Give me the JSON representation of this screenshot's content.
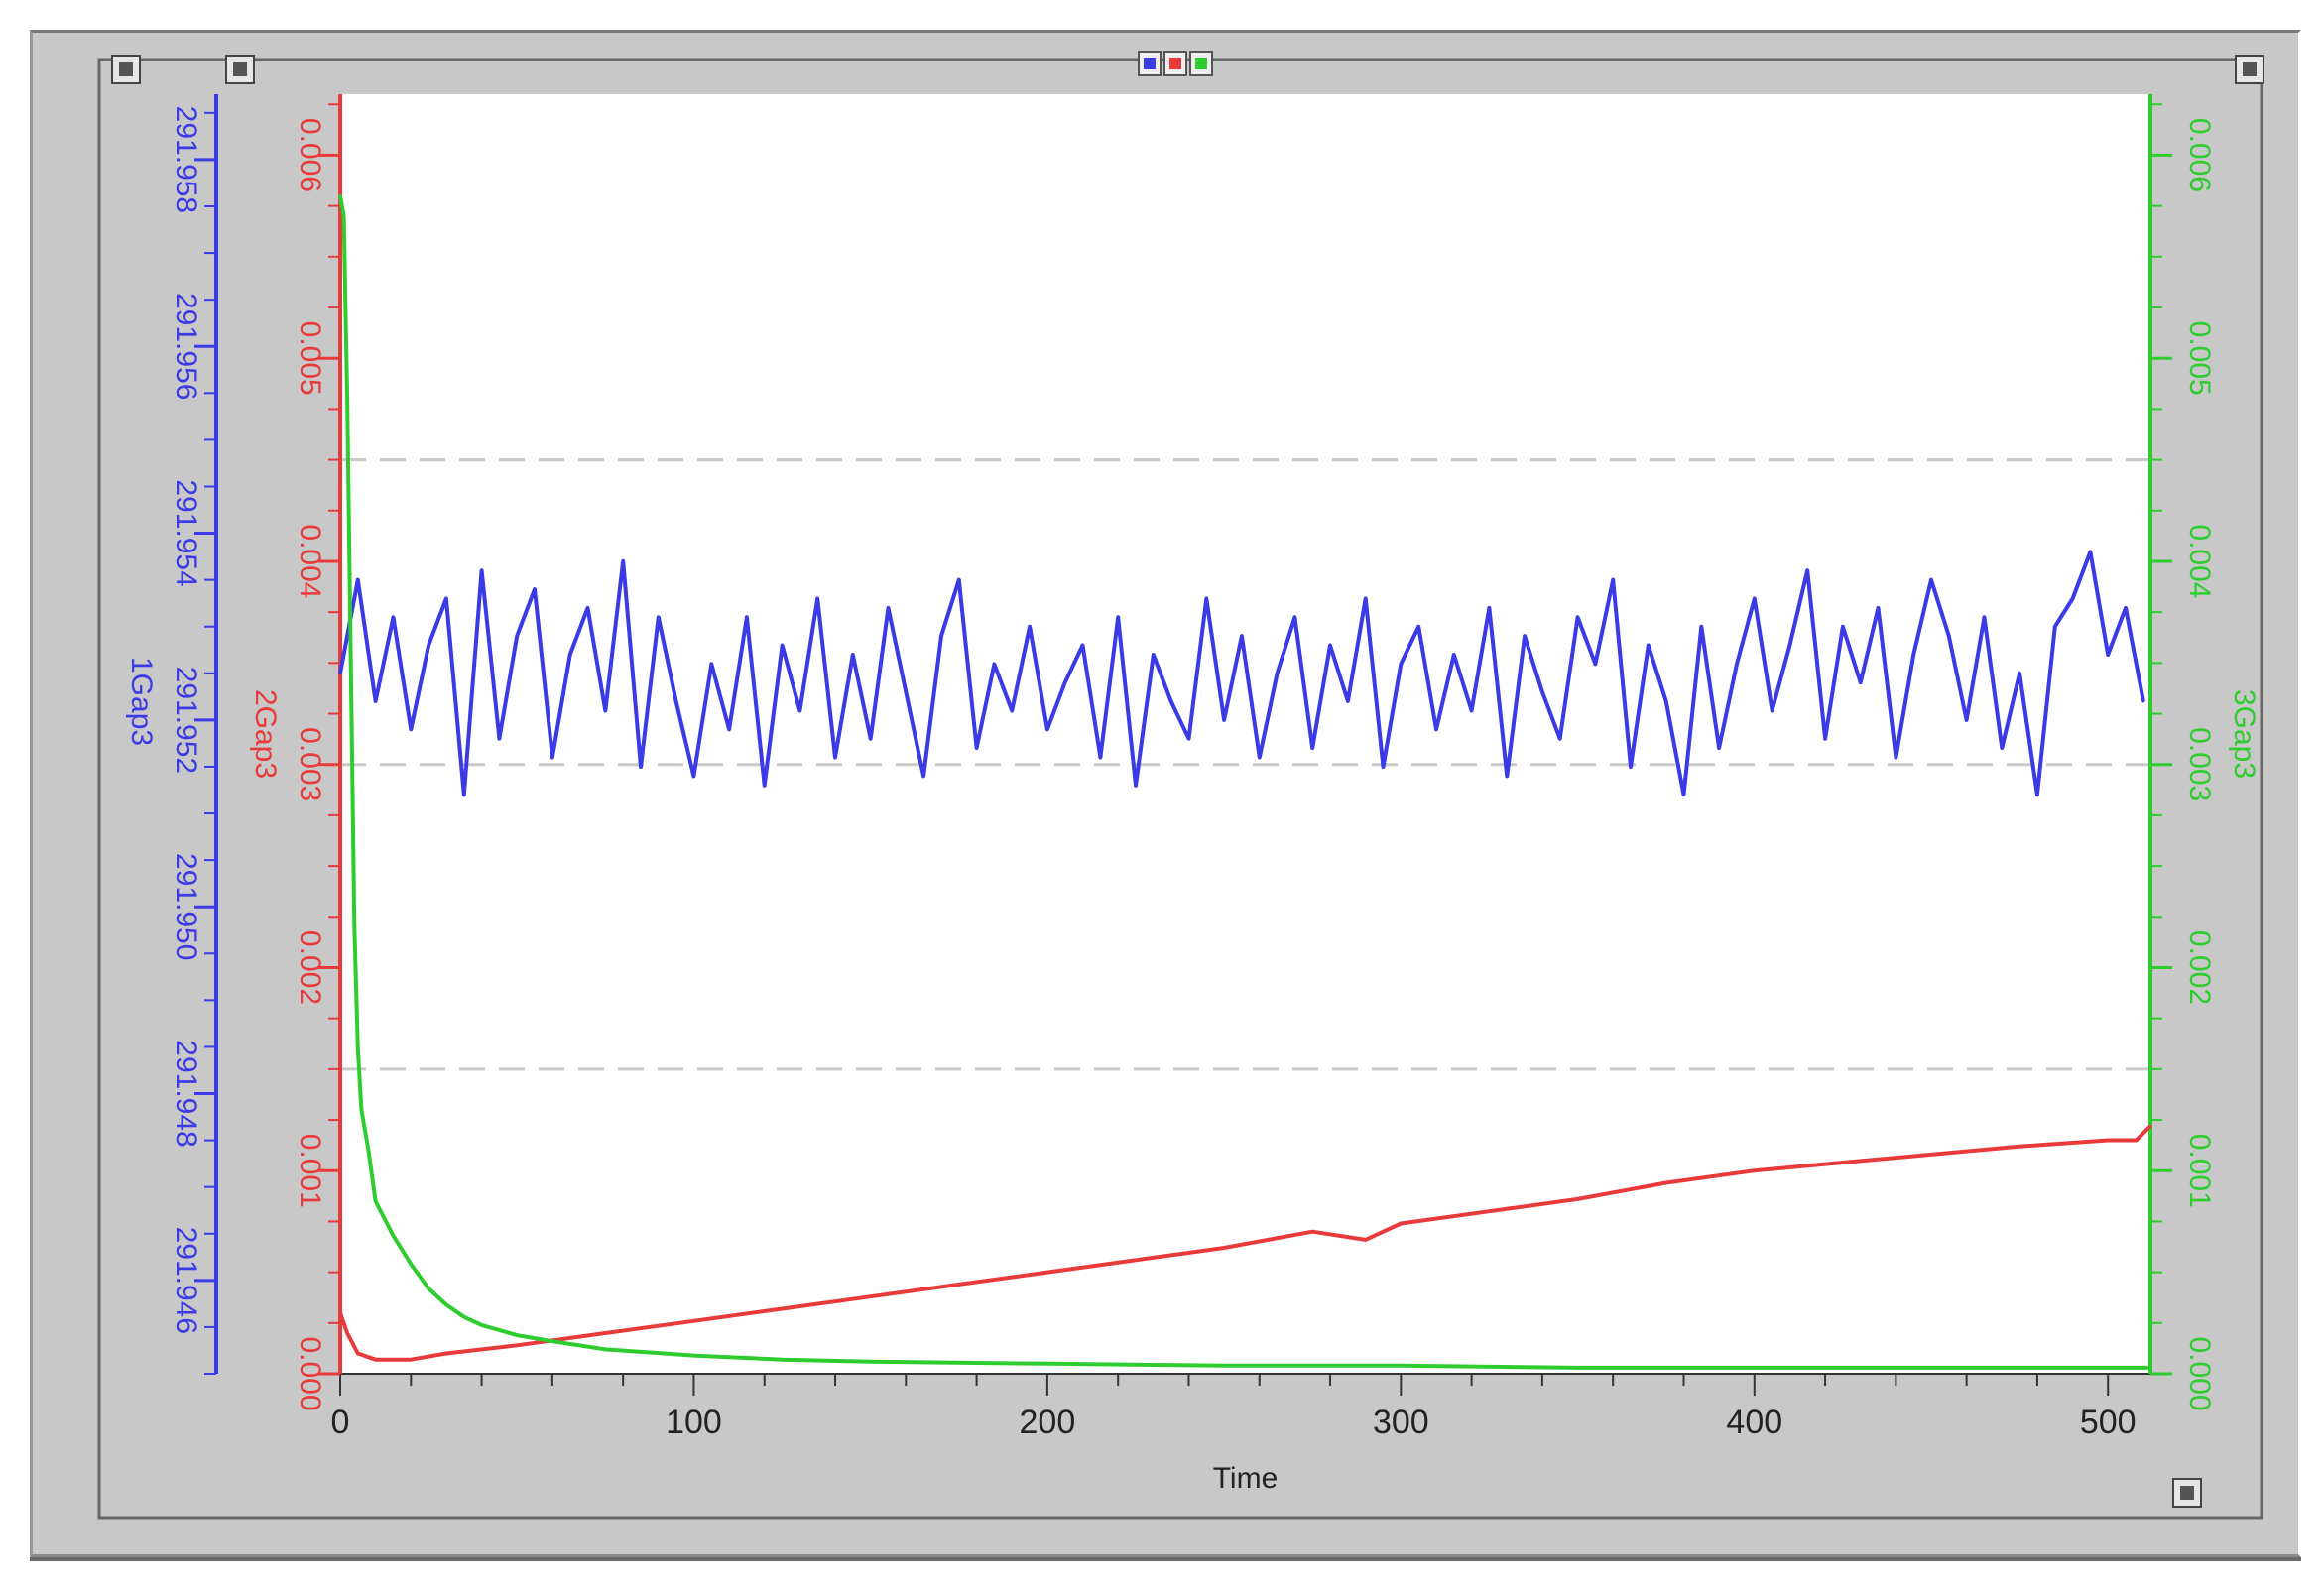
{
  "colors": {
    "frame_bg": "#c8c8c8",
    "plot_bg": "#ffffff",
    "series_1": "#3a3ae6",
    "series_2": "#e83a3a",
    "series_3": "#2ecc2e",
    "grid": "#c8c8c8"
  },
  "icons": {
    "corner_buttons": [
      "window-button-icon",
      "window-button-icon",
      "window-button-icon",
      "window-button-icon"
    ],
    "legend_toggles": [
      "series-1-toggle-icon",
      "series-2-toggle-icon",
      "series-3-toggle-icon"
    ]
  },
  "chart_data": {
    "type": "line",
    "title": "",
    "xlabel": "Time",
    "xlim": [
      0,
      512
    ],
    "x_ticks": [
      0,
      100,
      200,
      300,
      400,
      500
    ],
    "x_tick_labels": [
      "0",
      "100",
      "200",
      "300",
      "400",
      "500"
    ],
    "grid": "horizontal dashed",
    "axes": [
      {
        "id": "y1",
        "label": "1Gap3",
        "side": "left-outer",
        "color": "#3a3ae6",
        "ylim": [
          291.945,
          291.9587
        ],
        "ticks": [
          291.946,
          291.948,
          291.95,
          291.952,
          291.954,
          291.956,
          291.958
        ],
        "tick_labels": [
          "291.946",
          "291.948",
          "291.950",
          "291.952",
          "291.954",
          "291.956",
          "291.958"
        ]
      },
      {
        "id": "y2",
        "label": "2Gap3",
        "side": "left-inner",
        "color": "#e83a3a",
        "ylim": [
          0.0,
          0.0063
        ],
        "ticks": [
          0.0,
          0.001,
          0.002,
          0.003,
          0.004,
          0.005,
          0.006
        ],
        "tick_labels": [
          "0.000",
          "0.001",
          "0.002",
          "0.003",
          "0.004",
          "0.005",
          "0.006"
        ]
      },
      {
        "id": "y3",
        "label": "3Gap3",
        "side": "right",
        "color": "#2ecc2e",
        "ylim": [
          0.0,
          0.0063
        ],
        "ticks": [
          0.0,
          0.001,
          0.002,
          0.003,
          0.004,
          0.005,
          0.006
        ],
        "tick_labels": [
          "0.000",
          "0.001",
          "0.002",
          "0.003",
          "0.004",
          "0.005",
          "0.006"
        ]
      }
    ],
    "series": [
      {
        "name": "1Gap3",
        "axis": "y1",
        "color": "#3a3ae6",
        "x": [
          0,
          5,
          10,
          15,
          20,
          25,
          30,
          35,
          40,
          45,
          50,
          55,
          60,
          65,
          70,
          75,
          80,
          85,
          90,
          95,
          100,
          105,
          110,
          115,
          120,
          125,
          130,
          135,
          140,
          145,
          150,
          155,
          160,
          165,
          170,
          175,
          180,
          185,
          190,
          195,
          200,
          205,
          210,
          215,
          220,
          225,
          230,
          235,
          240,
          245,
          250,
          255,
          260,
          265,
          270,
          275,
          280,
          285,
          290,
          295,
          300,
          305,
          310,
          315,
          320,
          325,
          330,
          335,
          340,
          345,
          350,
          355,
          360,
          365,
          370,
          375,
          380,
          385,
          390,
          395,
          400,
          405,
          410,
          415,
          420,
          425,
          430,
          435,
          440,
          445,
          450,
          455,
          460,
          465,
          470,
          475,
          480,
          485,
          490,
          495,
          500,
          505,
          510
        ],
        "values": [
          291.9525,
          291.9535,
          291.9522,
          291.9531,
          291.9519,
          291.9528,
          291.9533,
          291.9512,
          291.9536,
          291.9518,
          291.9529,
          291.9534,
          291.9516,
          291.9527,
          291.9532,
          291.9521,
          291.9537,
          291.9515,
          291.9531,
          291.9522,
          291.9514,
          291.9526,
          291.9519,
          291.9531,
          291.9513,
          291.9528,
          291.9521,
          291.9533,
          291.9516,
          291.9527,
          291.9518,
          291.9532,
          291.9523,
          291.9514,
          291.9529,
          291.9535,
          291.9517,
          291.9526,
          291.9521,
          291.953,
          291.9519,
          291.9524,
          291.9528,
          291.9516,
          291.9531,
          291.9513,
          291.9527,
          291.9522,
          291.9518,
          291.9533,
          291.952,
          291.9529,
          291.9516,
          291.9525,
          291.9531,
          291.9517,
          291.9528,
          291.9522,
          291.9533,
          291.9515,
          291.9526,
          291.953,
          291.9519,
          291.9527,
          291.9521,
          291.9532,
          291.9514,
          291.9529,
          291.9523,
          291.9518,
          291.9531,
          291.9526,
          291.9535,
          291.9515,
          291.9528,
          291.9522,
          291.9512,
          291.953,
          291.9517,
          291.9526,
          291.9533,
          291.9521,
          291.9528,
          291.9536,
          291.9518,
          291.953,
          291.9524,
          291.9532,
          291.9516,
          291.9527,
          291.9535,
          291.9529,
          291.952,
          291.9531,
          291.9517,
          291.9525,
          291.9512,
          291.953,
          291.9533,
          291.9538,
          291.9527,
          291.9532,
          291.9522
        ]
      },
      {
        "name": "2Gap3",
        "axis": "y2",
        "color": "#e83a3a",
        "x": [
          0,
          2,
          5,
          10,
          20,
          30,
          50,
          75,
          100,
          125,
          150,
          175,
          200,
          225,
          250,
          275,
          290,
          300,
          325,
          350,
          375,
          400,
          425,
          450,
          475,
          500,
          508,
          512
        ],
        "values": [
          0.0003,
          0.0002,
          0.0001,
          7e-05,
          7e-05,
          0.0001,
          0.00014,
          0.0002,
          0.00026,
          0.00032,
          0.00038,
          0.00044,
          0.0005,
          0.00056,
          0.00062,
          0.0007,
          0.00066,
          0.00074,
          0.0008,
          0.00086,
          0.00094,
          0.001,
          0.00104,
          0.00108,
          0.00112,
          0.00115,
          0.00115,
          0.00122
        ]
      },
      {
        "name": "3Gap3",
        "axis": "y3",
        "color": "#2ecc2e",
        "x": [
          0,
          1,
          2,
          3,
          4,
          5,
          6,
          8,
          10,
          15,
          20,
          25,
          30,
          35,
          40,
          50,
          60,
          75,
          100,
          125,
          150,
          200,
          250,
          300,
          350,
          400,
          450,
          500,
          512
        ],
        "values": [
          0.0058,
          0.0057,
          0.0048,
          0.0035,
          0.0022,
          0.0016,
          0.0013,
          0.0011,
          0.00085,
          0.00068,
          0.00054,
          0.00042,
          0.00034,
          0.00028,
          0.00024,
          0.00019,
          0.00016,
          0.00012,
          9e-05,
          7e-05,
          6e-05,
          5e-05,
          4e-05,
          4e-05,
          3e-05,
          3e-05,
          3e-05,
          3e-05,
          3e-05
        ]
      }
    ]
  }
}
